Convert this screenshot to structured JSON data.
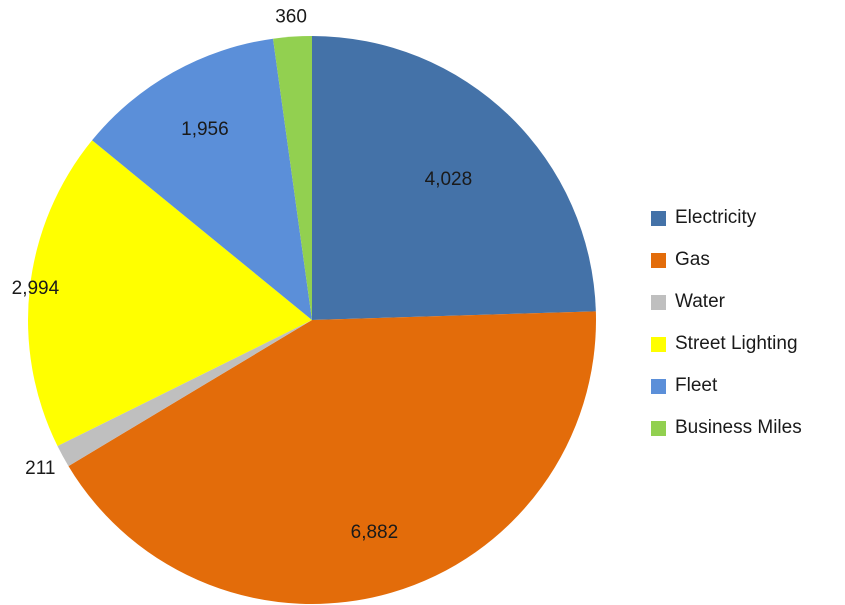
{
  "chart_data": {
    "type": "pie",
    "title": "",
    "start_angle_deg": 0,
    "direction": "clockwise",
    "categories": [
      "Electricity",
      "Gas",
      "Water",
      "Street Lighting",
      "Fleet",
      "Business Miles"
    ],
    "values": [
      4028,
      6882,
      211,
      2994,
      1956,
      360
    ],
    "data_labels": [
      "4,028",
      "6,882",
      "211",
      "2,994",
      "1,956",
      "360"
    ],
    "colors": [
      "#4472A8",
      "#E36C0A",
      "#BFBFBF",
      "#FFFF00",
      "#5B8FD9",
      "#92D050"
    ],
    "legend": {
      "position": "right"
    }
  }
}
